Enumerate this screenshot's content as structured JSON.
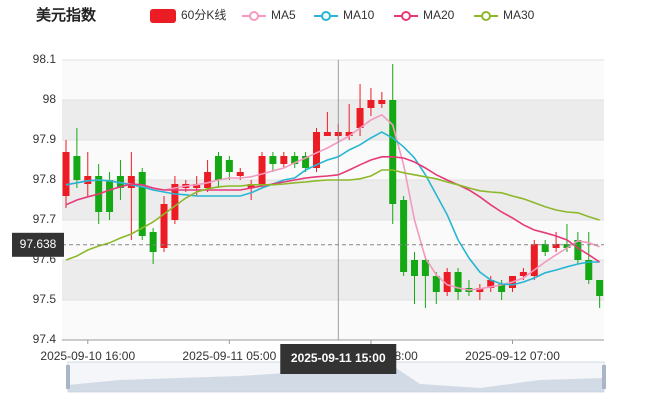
{
  "chart_data": {
    "type": "candlestick",
    "title": "美元指数",
    "categories": [
      null,
      null,
      "2025-09-10 16:00",
      null,
      null,
      null,
      null,
      null,
      null,
      null,
      null,
      null,
      null,
      null,
      null,
      "2025-09-11 05:00",
      null,
      null,
      null,
      null,
      null,
      null,
      null,
      null,
      null,
      "2025-09-11 15:00",
      null,
      null,
      "2025-09-11 18:00",
      null,
      null,
      null,
      null,
      null,
      null,
      null,
      null,
      null,
      null,
      null,
      null,
      "2025-09-12 07:00",
      null,
      null,
      null,
      null,
      null,
      null,
      null,
      null
    ],
    "candles": {
      "name": "60分K线",
      "up_color": "#eb1c24",
      "down_color": "#14a814",
      "open": [
        97.76,
        97.86,
        97.79,
        97.81,
        97.8,
        97.81,
        97.78,
        97.82,
        97.67,
        97.63,
        97.7,
        97.78,
        97.78,
        97.78,
        97.86,
        97.85,
        97.81,
        97.78,
        97.79,
        97.86,
        97.84,
        97.86,
        97.86,
        97.83,
        97.91,
        97.91,
        97.91,
        97.93,
        97.98,
        97.99,
        98.0,
        97.75,
        97.6,
        97.6,
        97.56,
        97.52,
        97.57,
        97.53,
        97.52,
        97.53,
        97.54,
        97.53,
        97.56,
        97.56,
        97.64,
        97.63,
        97.64,
        97.65,
        97.6,
        97.55
      ],
      "high": [
        97.9,
        97.93,
        97.87,
        97.84,
        97.82,
        97.85,
        97.87,
        97.83,
        97.68,
        97.76,
        97.81,
        97.8,
        97.81,
        97.85,
        97.87,
        97.86,
        97.83,
        97.8,
        97.87,
        97.87,
        97.87,
        97.87,
        97.87,
        97.93,
        97.97,
        97.94,
        97.99,
        98.04,
        98.03,
        98.02,
        98.09,
        97.76,
        97.62,
        97.61,
        97.57,
        97.58,
        97.58,
        97.55,
        97.54,
        97.56,
        97.55,
        97.56,
        97.58,
        97.65,
        97.65,
        97.67,
        97.69,
        97.67,
        97.67,
        97.55
      ],
      "low": [
        97.73,
        97.78,
        97.76,
        97.69,
        97.7,
        97.75,
        97.65,
        97.65,
        97.59,
        97.62,
        97.69,
        97.77,
        97.76,
        97.77,
        97.78,
        97.8,
        97.8,
        97.75,
        97.78,
        97.82,
        97.83,
        97.83,
        97.82,
        97.82,
        97.91,
        97.9,
        97.9,
        97.91,
        97.96,
        97.98,
        97.69,
        97.56,
        97.49,
        97.48,
        97.49,
        97.51,
        97.5,
        97.51,
        97.5,
        97.52,
        97.5,
        97.52,
        97.55,
        97.55,
        97.61,
        97.62,
        97.62,
        97.59,
        97.54,
        97.48
      ],
      "close": [
        97.87,
        97.8,
        97.81,
        97.72,
        97.72,
        97.78,
        97.81,
        97.66,
        97.62,
        97.74,
        97.79,
        97.79,
        97.79,
        97.82,
        97.8,
        97.82,
        97.82,
        97.79,
        97.86,
        97.84,
        97.86,
        97.84,
        97.83,
        97.92,
        97.92,
        97.92,
        97.92,
        97.98,
        98.0,
        98.0,
        97.74,
        97.57,
        97.56,
        97.56,
        97.52,
        97.57,
        97.52,
        97.52,
        97.53,
        97.55,
        97.52,
        97.56,
        97.57,
        97.64,
        97.62,
        97.64,
        97.63,
        97.6,
        97.55,
        97.51
      ]
    },
    "series": [
      {
        "name": "MA5",
        "color": "#f49ac1",
        "values": [
          97.788,
          97.793,
          97.798,
          97.8,
          97.798,
          97.793,
          97.79,
          97.785,
          97.778,
          97.775,
          97.78,
          97.785,
          97.788,
          97.793,
          97.8,
          97.805,
          97.805,
          97.808,
          97.815,
          97.823,
          97.83,
          97.843,
          97.855,
          97.868,
          97.88,
          97.895,
          97.91,
          97.93,
          97.95,
          97.963,
          97.938,
          97.838,
          97.7,
          97.605,
          97.563,
          97.538,
          97.53,
          97.525,
          97.528,
          97.533,
          97.538,
          97.545,
          97.555,
          97.575,
          97.595,
          97.613,
          97.63,
          97.648,
          97.643,
          97.633
        ]
      },
      {
        "name": "MA10",
        "color": "#26b6d4",
        "values": [
          97.788,
          97.793,
          97.798,
          97.8,
          97.798,
          97.793,
          97.788,
          97.783,
          97.775,
          97.77,
          97.765,
          97.763,
          97.76,
          97.76,
          97.76,
          97.76,
          97.76,
          97.768,
          97.78,
          97.79,
          97.8,
          97.805,
          97.825,
          97.838,
          97.85,
          97.858,
          97.875,
          97.888,
          97.905,
          97.92,
          97.905,
          97.883,
          97.855,
          97.813,
          97.763,
          97.713,
          97.65,
          97.605,
          97.57,
          97.55,
          97.54,
          97.538,
          97.545,
          97.555,
          97.568,
          97.575,
          97.583,
          97.59,
          97.595,
          97.595
        ]
      },
      {
        "name": "MA20",
        "color": "#e63a78",
        "values": [
          97.738,
          97.75,
          97.758,
          97.765,
          97.775,
          97.783,
          97.79,
          97.788,
          97.78,
          97.775,
          97.775,
          97.775,
          97.775,
          97.775,
          97.775,
          97.775,
          97.775,
          97.78,
          97.785,
          97.79,
          97.795,
          97.8,
          97.805,
          97.808,
          97.81,
          97.813,
          97.825,
          97.838,
          97.85,
          97.858,
          97.858,
          97.855,
          97.845,
          97.83,
          97.813,
          97.8,
          97.788,
          97.775,
          97.758,
          97.738,
          97.72,
          97.705,
          97.688,
          97.675,
          97.668,
          97.66,
          97.65,
          97.63,
          97.613,
          97.595
        ]
      },
      {
        "name": "MA30",
        "color": "#8db82a",
        "values": [
          97.6,
          97.61,
          97.625,
          97.635,
          97.643,
          97.655,
          97.665,
          97.68,
          97.695,
          97.715,
          97.735,
          97.755,
          97.77,
          97.778,
          97.783,
          97.785,
          97.785,
          97.788,
          97.788,
          97.788,
          97.79,
          97.793,
          97.795,
          97.798,
          97.8,
          97.8,
          97.8,
          97.803,
          97.81,
          97.825,
          97.825,
          97.818,
          97.813,
          97.808,
          97.803,
          97.795,
          97.788,
          97.78,
          97.773,
          97.77,
          97.768,
          97.76,
          97.753,
          97.743,
          97.733,
          97.725,
          97.72,
          97.718,
          97.708,
          97.7
        ]
      }
    ],
    "ylim": [
      97.4,
      98.1
    ],
    "yticks": [
      97.4,
      97.5,
      97.6,
      97.7,
      97.8,
      97.9,
      98,
      98.1
    ],
    "split_area": true,
    "crosshair": {
      "x": "2025-09-11 15:00",
      "y": 97.638
    }
  }
}
